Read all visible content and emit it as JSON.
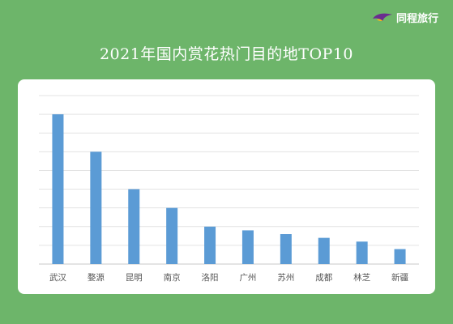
{
  "brand": {
    "name": "同程旅行",
    "logo_icon": "tongcheng-bird-logo-icon"
  },
  "chart_data": {
    "type": "bar",
    "title": "2021年国内赏花热门目的地TOP10",
    "categories": [
      "武汉",
      "婺源",
      "昆明",
      "南京",
      "洛阳",
      "广州",
      "苏州",
      "成都",
      "林芝",
      "新疆"
    ],
    "values": [
      8.0,
      6.0,
      4.0,
      3.0,
      2.0,
      1.8,
      1.6,
      1.4,
      1.2,
      0.8
    ],
    "ylim": [
      0,
      9
    ],
    "grid": true,
    "xlabel": "",
    "ylabel": "",
    "bar_color": "#5b9bd5"
  }
}
